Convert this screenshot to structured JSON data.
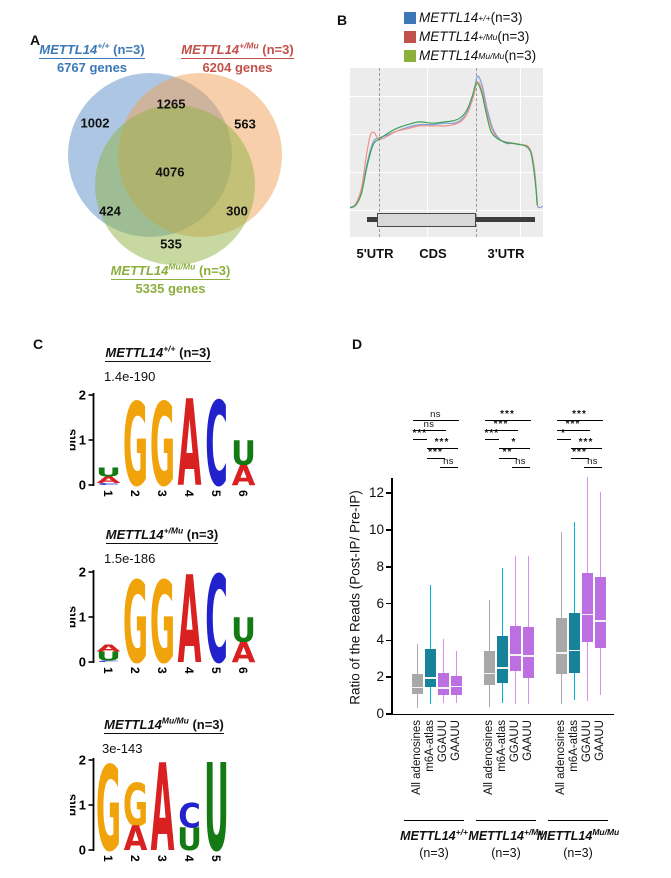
{
  "figure": {
    "panel_a_label": "A",
    "panel_b_label": "B",
    "panel_c_label": "C",
    "panel_d_label": "D"
  },
  "colors": {
    "venn_blue": "#5b8ec9",
    "venn_orange": "#f0a055",
    "venn_green": "#8fb344",
    "legend_blue": "#3c78b8",
    "legend_red": "#c2504b",
    "legend_green": "#8cae3d",
    "curve_blue": "#7f9fd9",
    "curve_red": "#ee9288",
    "curve_green": "#3da35a",
    "box_gray": "#a8a8a8",
    "box_teal": "#17839a",
    "box_purple": "#bb6fe0",
    "whisker_cyan": "#00b5d1",
    "whisker_magenta": "#d98ff0",
    "median": "#f2f2f2",
    "logo_G": "#f0a30a",
    "logo_A": "#d92121",
    "logo_C": "#2222cc",
    "logo_U": "#147a14"
  },
  "chart_data": [
    {
      "type": "venn",
      "panel": "A",
      "sets": [
        {
          "name": "METTL14",
          "sup": "+/+",
          "suffix": " (n=3)",
          "genes": "6767 genes",
          "color_key": "venn_blue"
        },
        {
          "name": "METTL14",
          "sup": "+/Mu",
          "suffix": " (n=3)",
          "genes": "6204 genes",
          "color_key": "venn_orange"
        },
        {
          "name": "METTL14",
          "sup": "Mu/Mu",
          "suffix": " (n=3)",
          "genes": "5335 genes",
          "color_key": "venn_green"
        }
      ],
      "counts": [
        {
          "region": "METTL14+/+ only",
          "value": "1002"
        },
        {
          "region": "METTL14+/+ and METTL14+/Mu",
          "value": "1265"
        },
        {
          "region": "METTL14+/Mu only",
          "value": "563"
        },
        {
          "region": "all three",
          "value": "4076"
        },
        {
          "region": "METTL14+/+ and METTL14Mu/Mu",
          "value": "424"
        },
        {
          "region": "METTL14+/Mu and METTL14Mu/Mu",
          "value": "300"
        },
        {
          "region": "METTL14Mu/Mu only",
          "value": "535"
        }
      ]
    },
    {
      "type": "line",
      "panel": "B",
      "name": "metagene m6A peak density",
      "legend": [
        {
          "name": "METTL14",
          "sup": "+/+",
          "suffix": " (n=3)",
          "color_key": "legend_blue"
        },
        {
          "name": "METTL14",
          "sup": "+/Mu",
          "suffix": " (n=3)",
          "color_key": "legend_red"
        },
        {
          "name": "METTL14",
          "sup": "Mu/Mu",
          "suffix": " (n=3)",
          "color_key": "legend_green"
        }
      ],
      "regions": [
        "5'UTR",
        "CDS",
        "3'UTR"
      ],
      "series": [
        {
          "name": "METTL14+/+",
          "color_key": "curve_blue",
          "points": [
            [
              0,
              0.01
            ],
            [
              0.03,
              0.03
            ],
            [
              0.06,
              0.13
            ],
            [
              0.09,
              0.35
            ],
            [
              0.12,
              0.5
            ],
            [
              0.15,
              0.53
            ],
            [
              0.19,
              0.55
            ],
            [
              0.24,
              0.58
            ],
            [
              0.3,
              0.61
            ],
            [
              0.36,
              0.63
            ],
            [
              0.43,
              0.63
            ],
            [
              0.49,
              0.64
            ],
            [
              0.54,
              0.64
            ],
            [
              0.58,
              0.67
            ],
            [
              0.61,
              0.73
            ],
            [
              0.64,
              0.86
            ],
            [
              0.66,
              0.99
            ],
            [
              0.685,
              0.92
            ],
            [
              0.71,
              0.75
            ],
            [
              0.74,
              0.6
            ],
            [
              0.77,
              0.53
            ],
            [
              0.81,
              0.49
            ],
            [
              0.85,
              0.49
            ],
            [
              0.89,
              0.48
            ],
            [
              0.92,
              0.46
            ],
            [
              0.94,
              0.41
            ],
            [
              0.955,
              0.3
            ],
            [
              0.965,
              0.15
            ],
            [
              0.972,
              0.02
            ],
            [
              1.0,
              0.02
            ]
          ]
        },
        {
          "name": "METTL14+/Mu",
          "color_key": "curve_red",
          "points": [
            [
              0,
              0.01
            ],
            [
              0.03,
              0.04
            ],
            [
              0.06,
              0.16
            ],
            [
              0.085,
              0.4
            ],
            [
              0.105,
              0.55
            ],
            [
              0.125,
              0.57
            ],
            [
              0.15,
              0.52
            ],
            [
              0.19,
              0.54
            ],
            [
              0.24,
              0.58
            ],
            [
              0.3,
              0.6
            ],
            [
              0.36,
              0.62
            ],
            [
              0.43,
              0.62
            ],
            [
              0.49,
              0.62
            ],
            [
              0.54,
              0.63
            ],
            [
              0.58,
              0.66
            ],
            [
              0.61,
              0.72
            ],
            [
              0.64,
              0.84
            ],
            [
              0.66,
              0.95
            ],
            [
              0.685,
              0.88
            ],
            [
              0.71,
              0.72
            ],
            [
              0.74,
              0.58
            ],
            [
              0.77,
              0.52
            ],
            [
              0.81,
              0.5
            ],
            [
              0.85,
              0.49
            ],
            [
              0.89,
              0.48
            ],
            [
              0.92,
              0.47
            ],
            [
              0.94,
              0.42
            ],
            [
              0.955,
              0.3
            ],
            [
              0.965,
              0.15
            ],
            [
              0.972,
              0.02
            ]
          ]
        },
        {
          "name": "METTL14Mu/Mu",
          "color_key": "curve_green",
          "points": [
            [
              0,
              0.01
            ],
            [
              0.03,
              0.03
            ],
            [
              0.06,
              0.12
            ],
            [
              0.09,
              0.33
            ],
            [
              0.12,
              0.48
            ],
            [
              0.15,
              0.52
            ],
            [
              0.19,
              0.56
            ],
            [
              0.24,
              0.6
            ],
            [
              0.3,
              0.63
            ],
            [
              0.36,
              0.65
            ],
            [
              0.43,
              0.64
            ],
            [
              0.49,
              0.65
            ],
            [
              0.54,
              0.66
            ],
            [
              0.58,
              0.69
            ],
            [
              0.61,
              0.75
            ],
            [
              0.635,
              0.85
            ],
            [
              0.655,
              0.94
            ],
            [
              0.68,
              0.88
            ],
            [
              0.705,
              0.72
            ],
            [
              0.73,
              0.58
            ],
            [
              0.76,
              0.53
            ],
            [
              0.8,
              0.5
            ],
            [
              0.84,
              0.49
            ],
            [
              0.88,
              0.48
            ],
            [
              0.91,
              0.47
            ],
            [
              0.935,
              0.43
            ],
            [
              0.95,
              0.32
            ],
            [
              0.962,
              0.17
            ],
            [
              0.97,
              0.03
            ]
          ]
        }
      ]
    },
    {
      "type": "logo-set",
      "panel": "C",
      "ylabel": "bits",
      "yticks": [
        0,
        1,
        2
      ],
      "logos": [
        {
          "title": {
            "name": "METTL14",
            "sup": "+/+",
            "suffix": " (n=3)"
          },
          "evalue": "1.4e-190",
          "cols": [
            {
              "pos": "1",
              "letters": [
                {
                  "ch": "U",
                  "bits": 0.2
                },
                {
                  "ch": "A",
                  "bits": 0.15
                },
                {
                  "ch": "C",
                  "bits": 0.04
                }
              ]
            },
            {
              "pos": "2",
              "letters": [
                {
                  "ch": "G",
                  "bits": 1.85
                }
              ]
            },
            {
              "pos": "3",
              "letters": [
                {
                  "ch": "G",
                  "bits": 1.85
                }
              ]
            },
            {
              "pos": "4",
              "letters": [
                {
                  "ch": "A",
                  "bits": 1.92
                }
              ]
            },
            {
              "pos": "5",
              "letters": [
                {
                  "ch": "C",
                  "bits": 1.88
                }
              ]
            },
            {
              "pos": "6",
              "letters": [
                {
                  "ch": "U",
                  "bits": 0.55
                },
                {
                  "ch": "A",
                  "bits": 0.45
                }
              ]
            }
          ]
        },
        {
          "title": {
            "name": "METTL14",
            "sup": "+/Mu",
            "suffix": " (n=3)"
          },
          "evalue": "1.5e-186",
          "cols": [
            {
              "pos": "1",
              "letters": [
                {
                  "ch": "A",
                  "bits": 0.16
                },
                {
                  "ch": "U",
                  "bits": 0.2
                },
                {
                  "ch": "C",
                  "bits": 0.03
                }
              ]
            },
            {
              "pos": "2",
              "letters": [
                {
                  "ch": "G",
                  "bits": 1.82
                }
              ]
            },
            {
              "pos": "3",
              "letters": [
                {
                  "ch": "G",
                  "bits": 1.82
                }
              ]
            },
            {
              "pos": "4",
              "letters": [
                {
                  "ch": "A",
                  "bits": 1.95
                }
              ]
            },
            {
              "pos": "5",
              "letters": [
                {
                  "ch": "C",
                  "bits": 1.95
                }
              ]
            },
            {
              "pos": "6",
              "letters": [
                {
                  "ch": "U",
                  "bits": 0.55
                },
                {
                  "ch": "A",
                  "bits": 0.45
                }
              ]
            }
          ]
        },
        {
          "title": {
            "name": "METTL14",
            "sup": "Mu/Mu",
            "suffix": " (n=3)"
          },
          "evalue": "3e-143",
          "cols": [
            {
              "pos": "1",
              "letters": [
                {
                  "ch": "G",
                  "bits": 1.9
                }
              ]
            },
            {
              "pos": "2",
              "letters": [
                {
                  "ch": "G",
                  "bits": 0.95
                },
                {
                  "ch": "A",
                  "bits": 0.55
                }
              ]
            },
            {
              "pos": "3",
              "letters": [
                {
                  "ch": "A",
                  "bits": 1.95
                }
              ]
            },
            {
              "pos": "4",
              "letters": [
                {
                  "ch": "C",
                  "bits": 0.55
                },
                {
                  "ch": "U",
                  "bits": 0.5
                }
              ]
            },
            {
              "pos": "5",
              "letters": [
                {
                  "ch": "U",
                  "bits": 1.95
                }
              ]
            }
          ]
        }
      ]
    },
    {
      "type": "box",
      "panel": "D",
      "ylabel": "Ratio of the Reads (Post-IP/ Pre-IP)",
      "yticks": [
        0,
        2,
        4,
        6,
        8,
        10,
        12
      ],
      "ylim": [
        0,
        13.2
      ],
      "categories": [
        "All adenosines",
        "m6A-atlas",
        "GGAUU",
        "GAAUU"
      ],
      "box_stats_order": [
        "whisker_low",
        "q1",
        "median",
        "q3",
        "whisker_high"
      ],
      "groups": [
        {
          "label": {
            "name": "METTL14",
            "sup": "+/+",
            "suffix": "(n=3)"
          },
          "boxes": [
            [
              0.3,
              1.1,
              1.45,
              2.15,
              3.8
            ],
            [
              0.55,
              1.45,
              1.95,
              3.55,
              7.0
            ],
            [
              0.6,
              1.05,
              1.4,
              2.25,
              4.1
            ],
            [
              0.6,
              1.05,
              1.5,
              2.05,
              3.4
            ]
          ]
        },
        {
          "label": {
            "name": "METTL14",
            "sup": "+/Mu",
            "suffix": "(n=3)"
          },
          "boxes": [
            [
              0.4,
              1.6,
              2.2,
              3.4,
              6.2
            ],
            [
              0.6,
              1.7,
              2.5,
              4.25,
              7.95
            ],
            [
              0.55,
              2.35,
              3.2,
              4.8,
              8.6
            ],
            [
              0.55,
              1.95,
              3.15,
              4.75,
              8.6
            ]
          ]
        },
        {
          "label": {
            "name": "METTL14",
            "sup": "Mu/Mu",
            "suffix": "(n=3)"
          },
          "boxes": [
            [
              0.55,
              2.2,
              3.3,
              5.2,
              9.9
            ],
            [
              0.75,
              2.25,
              3.45,
              5.5,
              10.45
            ],
            [
              0.7,
              3.9,
              5.4,
              7.65,
              12.9
            ],
            [
              1.05,
              3.6,
              5.05,
              7.45,
              12.05
            ]
          ]
        }
      ],
      "significance": {
        "pairs": [
          [
            0,
            3
          ],
          [
            0,
            2
          ],
          [
            0,
            1
          ],
          [
            1,
            3
          ],
          [
            1,
            2
          ],
          [
            2,
            3
          ]
        ],
        "labels": [
          [
            "ns",
            "ns",
            "***",
            "***",
            "***",
            "ns"
          ],
          [
            "***",
            "***",
            "***",
            "*",
            "**",
            "ns"
          ],
          [
            "***",
            "***",
            "*",
            "***",
            "***",
            "ns"
          ]
        ]
      }
    }
  ]
}
